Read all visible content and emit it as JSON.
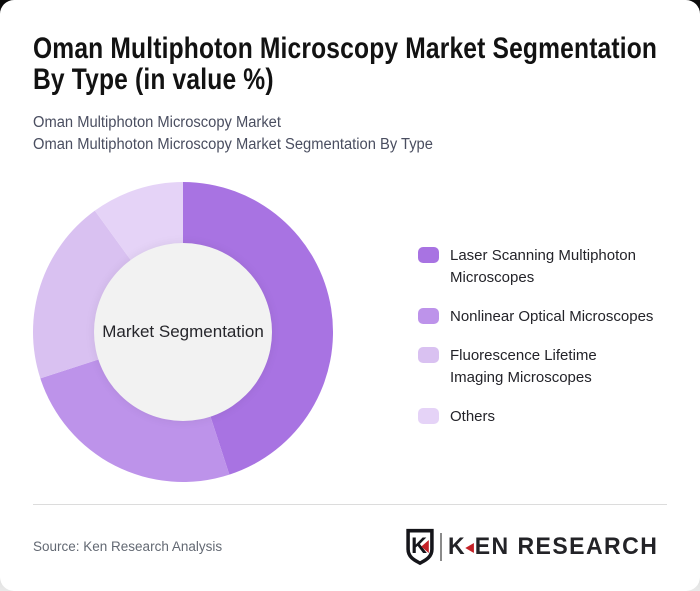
{
  "header": {
    "title_line1": "Oman Multiphoton Microscopy Market Segmentation",
    "title_line2": "By Type (in value %)",
    "subtitle_line1": "Oman Multiphoton Microscopy Market",
    "subtitle_line2": "Oman Multiphoton Microscopy Market Segmentation By Type"
  },
  "chart_data": {
    "type": "pie",
    "donut": true,
    "title": "Oman Multiphoton Microscopy Market Segmentation By Type (in value %)",
    "center_label": "Market Segmentation",
    "start_angle_deg": 0,
    "direction": "clockwise",
    "unit": "% of value",
    "legend_position": "right",
    "slices": [
      {
        "label": "Laser Scanning Multiphoton Microscopes",
        "value": 45,
        "color": "#a873e2"
      },
      {
        "label": "Nonlinear Optical Microscopes",
        "value": 25,
        "color": "#bd93ea"
      },
      {
        "label": "Fluorescence Lifetime Imaging Microscopes",
        "value": 20,
        "color": "#d9c1f1"
      },
      {
        "label": "Others",
        "value": 10,
        "color": "#e5d3f7"
      }
    ],
    "geometry": {
      "outer_radius": 150,
      "inner_radius": 89,
      "inner_circle_color": "#f2f2f2"
    }
  },
  "footer": {
    "source": "Source: Ken Research Analysis",
    "logo": {
      "monogram": "K",
      "text_k": "K",
      "text_rest": "EN RESEARCH",
      "accent_red": "#c42127"
    }
  }
}
